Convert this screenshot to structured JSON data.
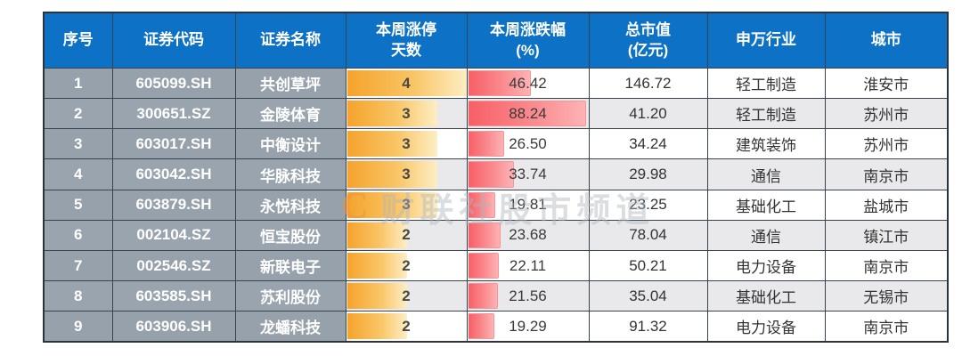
{
  "colors": {
    "header_blue": "#0d71c6",
    "gray_cell": "#97a1ab",
    "alt_row": "#e9e9eb",
    "grid_border": "#39434d",
    "bar_orange_start": "#f5a32c",
    "bar_orange_end": "#fdeec4",
    "bar_red_start": "#f75f66",
    "bar_red_end": "#fdb3b5",
    "text_dark": "#333333"
  },
  "watermark": {
    "logo": "C",
    "text": "财联社股市频道"
  },
  "headers": [
    {
      "line1": "序号",
      "line2": ""
    },
    {
      "line1": "证券代码",
      "line2": ""
    },
    {
      "line1": "证券名称",
      "line2": ""
    },
    {
      "line1": "本周涨停",
      "line2": "天数"
    },
    {
      "line1": "本周涨跌幅",
      "line2": "(%)"
    },
    {
      "line1": "总市值",
      "line2": "(亿元)"
    },
    {
      "line1": "申万行业",
      "line2": ""
    },
    {
      "line1": "城市",
      "line2": ""
    }
  ],
  "chart_data": {
    "type": "table",
    "title": "",
    "columns": [
      "序号",
      "证券代码",
      "证券名称",
      "本周涨停天数",
      "本周涨跌幅(%)",
      "总市值(亿元)",
      "申万行业",
      "城市"
    ],
    "bar_columns": {
      "days": {
        "style": "orange-gradient",
        "max": 4,
        "fill_scale_pct": 100
      },
      "chg": {
        "style": "red-gradient",
        "max": 88.24,
        "fill_scale_pct": 97
      }
    },
    "rows": [
      {
        "idx": "1",
        "code": "605099.SH",
        "name": "共创草坪",
        "days": "4",
        "chg": "46.42",
        "mcap": "146.72",
        "industry": "轻工制造",
        "city": "淮安市"
      },
      {
        "idx": "2",
        "code": "300651.SZ",
        "name": "金陵体育",
        "days": "3",
        "chg": "88.24",
        "mcap": "41.20",
        "industry": "轻工制造",
        "city": "苏州市"
      },
      {
        "idx": "3",
        "code": "603017.SH",
        "name": "中衡设计",
        "days": "3",
        "chg": "26.50",
        "mcap": "34.24",
        "industry": "建筑装饰",
        "city": "苏州市"
      },
      {
        "idx": "4",
        "code": "603042.SH",
        "name": "华脉科技",
        "days": "3",
        "chg": "33.74",
        "mcap": "29.98",
        "industry": "通信",
        "city": "南京市"
      },
      {
        "idx": "5",
        "code": "603879.SH",
        "name": "永悦科技",
        "days": "3",
        "chg": "19.81",
        "mcap": "23.25",
        "industry": "基础化工",
        "city": "盐城市"
      },
      {
        "idx": "6",
        "code": "002104.SZ",
        "name": "恒宝股份",
        "days": "2",
        "chg": "23.68",
        "mcap": "78.04",
        "industry": "通信",
        "city": "镇江市"
      },
      {
        "idx": "7",
        "code": "002546.SZ",
        "name": "新联电子",
        "days": "2",
        "chg": "22.11",
        "mcap": "50.21",
        "industry": "电力设备",
        "city": "南京市"
      },
      {
        "idx": "8",
        "code": "603585.SH",
        "name": "苏利股份",
        "days": "2",
        "chg": "21.56",
        "mcap": "35.04",
        "industry": "基础化工",
        "city": "无锡市"
      },
      {
        "idx": "9",
        "code": "603906.SH",
        "name": "龙蟠科技",
        "days": "2",
        "chg": "19.29",
        "mcap": "91.32",
        "industry": "电力设备",
        "city": "南京市"
      }
    ]
  }
}
